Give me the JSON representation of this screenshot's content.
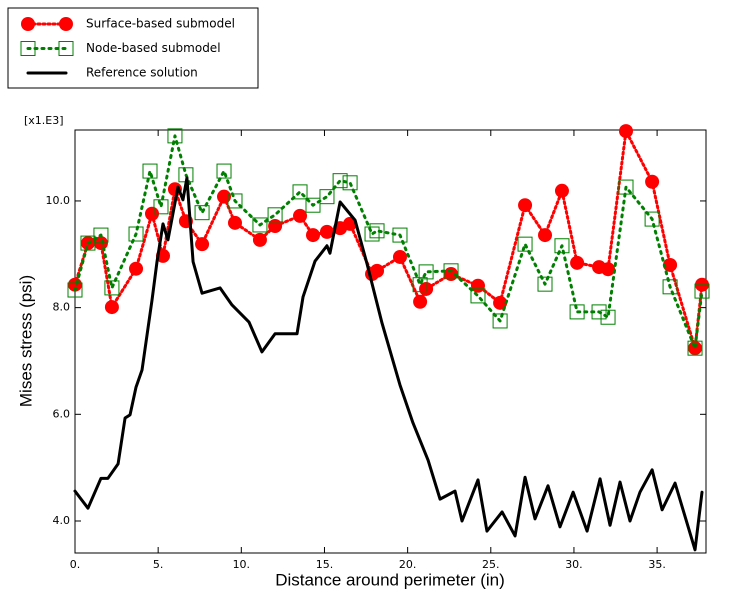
{
  "chart_data": {
    "type": "line",
    "annotation": "[x1.E3]",
    "xlabel": "Distance around perimeter (in)",
    "ylabel": "Mises stress (psi)",
    "xlim": [
      0,
      37.94
    ],
    "ylim": [
      3.4,
      11.33
    ],
    "xticks": [
      {
        "value": 0,
        "label": "0."
      },
      {
        "value": 5,
        "label": "5."
      },
      {
        "value": 10,
        "label": "10."
      },
      {
        "value": 15,
        "label": "15."
      },
      {
        "value": 20,
        "label": "20."
      },
      {
        "value": 25,
        "label": "25."
      },
      {
        "value": 30,
        "label": "30."
      },
      {
        "value": 35,
        "label": "35."
      }
    ],
    "yticks": [
      {
        "value": 4,
        "label": "4.0"
      },
      {
        "value": 6,
        "label": "6.0"
      },
      {
        "value": 8,
        "label": "8.0"
      },
      {
        "value": 10,
        "label": "10.0"
      }
    ],
    "grid": false,
    "legend": "top-left",
    "series": [
      {
        "name": "Surface-based submodel",
        "color": "#ff0000",
        "marker": "circle",
        "linestyle": "dotted",
        "x": [
          0,
          0.78,
          1.56,
          2.22,
          3.67,
          4.63,
          5.29,
          6.01,
          6.67,
          7.64,
          8.96,
          9.62,
          11.12,
          12.03,
          13.53,
          14.31,
          15.15,
          15.94,
          16.54,
          17.86,
          18.16,
          19.54,
          20.75,
          21.11,
          22.61,
          24.23,
          25.56,
          27.06,
          28.26,
          29.28,
          30.19,
          31.51,
          32.05,
          33.13,
          34.7,
          35.78,
          37.28,
          37.7
        ],
        "values": [
          8.43,
          9.21,
          9.21,
          8.01,
          8.73,
          9.76,
          8.97,
          10.22,
          9.62,
          9.19,
          10.08,
          9.59,
          9.27,
          9.53,
          9.72,
          9.36,
          9.42,
          9.49,
          9.57,
          8.63,
          8.69,
          8.95,
          8.11,
          8.35,
          8.63,
          8.41,
          8.09,
          9.92,
          9.36,
          10.19,
          8.84,
          8.76,
          8.72,
          11.31,
          10.36,
          8.8,
          7.24,
          8.43
        ]
      },
      {
        "name": "Node-based submodel",
        "color": "#008000",
        "marker": "square",
        "linestyle": "dotted",
        "x": [
          0,
          0.78,
          1.56,
          2.22,
          3.67,
          4.51,
          5.17,
          6.01,
          6.67,
          7.64,
          8.96,
          9.62,
          11.12,
          12.03,
          13.53,
          14.31,
          15.15,
          15.94,
          16.54,
          17.86,
          18.16,
          19.54,
          20.75,
          21.11,
          22.61,
          24.23,
          25.56,
          27.06,
          28.26,
          29.28,
          30.19,
          31.51,
          32.05,
          33.13,
          34.7,
          35.78,
          37.28,
          37.7
        ],
        "values": [
          8.33,
          9.21,
          9.36,
          8.37,
          9.38,
          10.56,
          9.89,
          11.22,
          10.49,
          9.78,
          10.56,
          10.0,
          9.55,
          9.74,
          10.17,
          9.92,
          10.08,
          10.38,
          10.34,
          9.38,
          9.44,
          9.36,
          8.43,
          8.67,
          8.69,
          8.22,
          7.75,
          9.19,
          8.44,
          9.16,
          7.92,
          7.92,
          7.82,
          10.26,
          9.66,
          8.39,
          7.24,
          8.31
        ]
      },
      {
        "name": "Reference solution",
        "color": "#000000",
        "marker": "none",
        "linestyle": "solid",
        "x": [
          0,
          0.78,
          1.56,
          1.98,
          2.59,
          3.01,
          3.31,
          3.67,
          4.03,
          4.63,
          4.93,
          5.29,
          5.59,
          6.19,
          6.49,
          6.73,
          7.1,
          7.64,
          8.72,
          9.44,
          10.46,
          11.24,
          12.03,
          13.35,
          13.71,
          14.43,
          15.15,
          15.33,
          15.94,
          16.84,
          17.56,
          18.46,
          19.54,
          20.32,
          21.23,
          21.95,
          22.85,
          23.27,
          24.23,
          24.77,
          25.68,
          26.46,
          27.06,
          27.66,
          28.44,
          29.16,
          29.95,
          30.79,
          31.57,
          32.17,
          32.77,
          33.37,
          33.97,
          34.7,
          35.3,
          36.08,
          37.28,
          37.7
        ],
        "values": [
          4.56,
          4.24,
          4.8,
          4.8,
          5.07,
          5.93,
          5.99,
          6.51,
          6.83,
          8.14,
          8.86,
          9.57,
          9.27,
          10.26,
          10.02,
          10.43,
          8.86,
          8.27,
          8.37,
          8.05,
          7.73,
          7.17,
          7.51,
          7.51,
          8.2,
          8.87,
          9.16,
          9.02,
          9.98,
          9.64,
          8.82,
          7.71,
          6.55,
          5.84,
          5.14,
          4.41,
          4.56,
          4.0,
          4.77,
          3.81,
          4.17,
          3.72,
          4.82,
          4.04,
          4.66,
          3.89,
          4.54,
          3.81,
          4.79,
          3.92,
          4.73,
          4.0,
          4.54,
          4.96,
          4.21,
          4.71,
          3.46,
          4.54
        ]
      }
    ]
  }
}
